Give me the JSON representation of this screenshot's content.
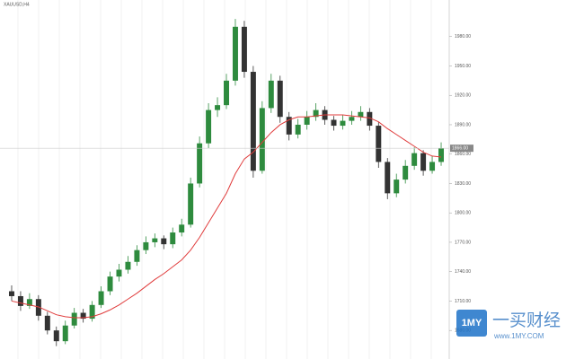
{
  "chart_data": {
    "type": "candlestick",
    "title": "XAUUSD,H4",
    "up_color": "#2e8b3e",
    "down_color": "#333333",
    "ma_color": "#e03c3c",
    "ylim": [
      1660,
      2010
    ],
    "yticks": [
      {
        "value": 1680,
        "label": "1680.00"
      },
      {
        "value": 1710,
        "label": "1710.00"
      },
      {
        "value": 1740,
        "label": "1740.00"
      },
      {
        "value": 1770,
        "label": "1770.00"
      },
      {
        "value": 1800,
        "label": "1800.00"
      },
      {
        "value": 1830,
        "label": "1830.00"
      },
      {
        "value": 1860,
        "label": "1860.00"
      },
      {
        "value": 1890,
        "label": "1890.00"
      },
      {
        "value": 1920,
        "label": "1920.00"
      },
      {
        "value": 1950,
        "label": "1950.00"
      },
      {
        "value": 1980,
        "label": "1980.00"
      }
    ],
    "last_price": {
      "value": 1866,
      "label": "1866.00"
    },
    "candles": [
      [
        1720,
        1726,
        1710,
        1715
      ],
      [
        1715,
        1720,
        1700,
        1705
      ],
      [
        1705,
        1718,
        1702,
        1712
      ],
      [
        1712,
        1716,
        1690,
        1695
      ],
      [
        1695,
        1699,
        1676,
        1680
      ],
      [
        1680,
        1684,
        1664,
        1669
      ],
      [
        1669,
        1690,
        1666,
        1685
      ],
      [
        1685,
        1703,
        1682,
        1698
      ],
      [
        1698,
        1702,
        1688,
        1692
      ],
      [
        1692,
        1710,
        1689,
        1706
      ],
      [
        1706,
        1725,
        1703,
        1720
      ],
      [
        1720,
        1740,
        1716,
        1735
      ],
      [
        1735,
        1748,
        1730,
        1742
      ],
      [
        1742,
        1756,
        1738,
        1750
      ],
      [
        1750,
        1767,
        1746,
        1762
      ],
      [
        1762,
        1776,
        1758,
        1770
      ],
      [
        1770,
        1779,
        1765,
        1774
      ],
      [
        1774,
        1777,
        1763,
        1768
      ],
      [
        1768,
        1785,
        1764,
        1780
      ],
      [
        1780,
        1794,
        1776,
        1788
      ],
      [
        1788,
        1836,
        1785,
        1830
      ],
      [
        1830,
        1878,
        1826,
        1871
      ],
      [
        1871,
        1912,
        1866,
        1905
      ],
      [
        1905,
        1918,
        1898,
        1910
      ],
      [
        1910,
        1942,
        1906,
        1935
      ],
      [
        1935,
        1998,
        1930,
        1990
      ],
      [
        1990,
        1996,
        1938,
        1944
      ],
      [
        1944,
        1950,
        1836,
        1843
      ],
      [
        1843,
        1914,
        1840,
        1907
      ],
      [
        1907,
        1942,
        1902,
        1935
      ],
      [
        1935,
        1940,
        1892,
        1898
      ],
      [
        1898,
        1903,
        1874,
        1880
      ],
      [
        1880,
        1896,
        1876,
        1890
      ],
      [
        1890,
        1904,
        1885,
        1898
      ],
      [
        1898,
        1912,
        1894,
        1905
      ],
      [
        1905,
        1909,
        1890,
        1895
      ],
      [
        1895,
        1899,
        1884,
        1889
      ],
      [
        1889,
        1900,
        1885,
        1894
      ],
      [
        1894,
        1904,
        1890,
        1898
      ],
      [
        1898,
        1909,
        1894,
        1903
      ],
      [
        1903,
        1907,
        1884,
        1889
      ],
      [
        1889,
        1893,
        1846,
        1852
      ],
      [
        1852,
        1856,
        1814,
        1820
      ],
      [
        1820,
        1840,
        1816,
        1834
      ],
      [
        1834,
        1854,
        1830,
        1848
      ],
      [
        1848,
        1867,
        1844,
        1861
      ],
      [
        1861,
        1864,
        1838,
        1843
      ],
      [
        1843,
        1858,
        1840,
        1852
      ],
      [
        1852,
        1872,
        1848,
        1866
      ]
    ],
    "ma": [
      1710,
      1708,
      1706,
      1704,
      1700,
      1696,
      1694,
      1693,
      1693,
      1694,
      1697,
      1701,
      1706,
      1712,
      1718,
      1725,
      1732,
      1738,
      1745,
      1752,
      1762,
      1775,
      1790,
      1805,
      1820,
      1840,
      1855,
      1862,
      1872,
      1882,
      1890,
      1895,
      1898,
      1898,
      1899,
      1900,
      1900,
      1900,
      1899,
      1898,
      1897,
      1893,
      1886,
      1880,
      1874,
      1868,
      1862,
      1858,
      1857
    ],
    "watermark": {
      "brand": "1MY",
      "name": "一买财经",
      "url": "www.1MY.COM"
    }
  }
}
